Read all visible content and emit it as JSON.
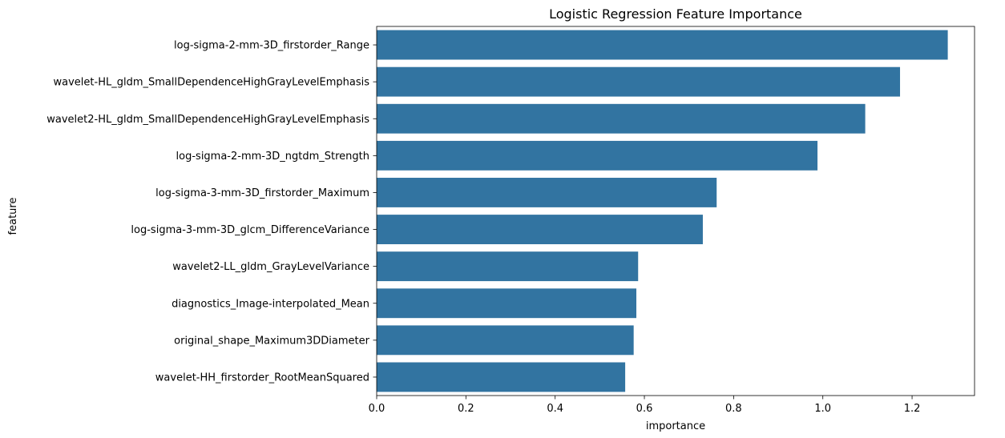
{
  "chart_data": {
    "type": "bar",
    "orientation": "horizontal",
    "title": "Logistic Regression Feature Importance",
    "xlabel": "importance",
    "ylabel": "feature",
    "xlim": [
      0,
      1.34
    ],
    "xticks": [
      "0.0",
      "0.2",
      "0.4",
      "0.6",
      "0.8",
      "1.0",
      "1.2"
    ],
    "grid": false,
    "bar_color": "#3274a1",
    "categories": [
      "log-sigma-2-mm-3D_firstorder_Range",
      "wavelet-HL_gldm_SmallDependenceHighGrayLevelEmphasis",
      "wavelet2-HL_gldm_SmallDependenceHighGrayLevelEmphasis",
      "log-sigma-2-mm-3D_ngtdm_Strength",
      "log-sigma-3-mm-3D_firstorder_Maximum",
      "log-sigma-3-mm-3D_glcm_DifferenceVariance",
      "wavelet2-LL_gldm_GrayLevelVariance",
      "diagnostics_Image-interpolated_Mean",
      "original_shape_Maximum3DDiameter",
      "wavelet-HH_firstorder_RootMeanSquared"
    ],
    "values": [
      1.28,
      1.173,
      1.095,
      0.988,
      0.762,
      0.731,
      0.586,
      0.582,
      0.576,
      0.557
    ]
  }
}
